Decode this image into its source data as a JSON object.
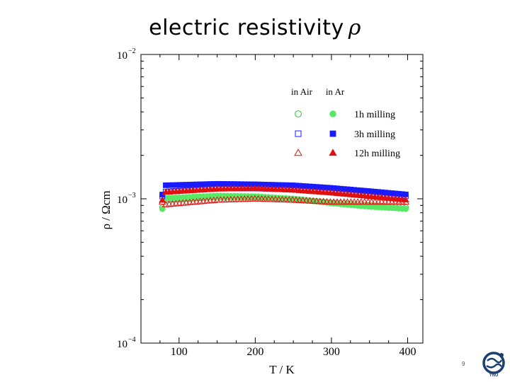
{
  "slide": {
    "title": "electric resistivity",
    "title_symbol": "ρ",
    "page_number": "9",
    "logo_caption": "YNU"
  },
  "chart_data": {
    "type": "scatter",
    "title": "electric resistivity ρ",
    "xlabel": "T / K",
    "ylabel": "ρ / Ωcm",
    "xlim": [
      50,
      420
    ],
    "ylim": [
      0.0001,
      0.01
    ],
    "yscale": "log",
    "x_ticks": [
      100,
      200,
      300,
      400
    ],
    "y_ticks": [
      {
        "value": 0.01,
        "base": "10",
        "exp": "−2"
      },
      {
        "value": 0.001,
        "base": "10",
        "exp": "−3"
      },
      {
        "value": 0.0001,
        "base": "10",
        "exp": "−4"
      }
    ],
    "legend": {
      "placement": "top-right",
      "col_headers": [
        "in Air",
        "in Ar"
      ],
      "rows": [
        {
          "label": "1h milling",
          "color": "#2dbf3a",
          "shape": "circle"
        },
        {
          "label": "3h milling",
          "color": "#1a1aff",
          "shape": "square"
        },
        {
          "label": "12h milling",
          "color": "#e01010",
          "shape": "triangle"
        }
      ]
    },
    "x_range": [
      78,
      400
    ],
    "series": [
      {
        "name": "1h milling in Air",
        "color": "#2dbf3a",
        "shape": "circle",
        "filled": false,
        "points": [
          [
            80,
            0.00098
          ],
          [
            150,
            0.00103
          ],
          [
            200,
            0.00103
          ],
          [
            250,
            0.001
          ],
          [
            300,
            0.00094
          ],
          [
            350,
            0.0009
          ],
          [
            400,
            0.00087
          ]
        ]
      },
      {
        "name": "1h milling in Ar",
        "color": "#59e865",
        "shape": "circle",
        "filled": true,
        "points": [
          [
            80,
            0.00101
          ],
          [
            150,
            0.00105
          ],
          [
            200,
            0.00104
          ],
          [
            250,
            0.001
          ],
          [
            300,
            0.00093
          ],
          [
            350,
            0.00088
          ],
          [
            400,
            0.00085
          ]
        ]
      },
      {
        "name": "3h milling in Air",
        "color": "#1a1aff",
        "shape": "square",
        "filled": false,
        "points": [
          [
            80,
            0.00112
          ],
          [
            150,
            0.00118
          ],
          [
            200,
            0.00118
          ],
          [
            250,
            0.00116
          ],
          [
            300,
            0.00112
          ],
          [
            350,
            0.00108
          ],
          [
            400,
            0.00104
          ]
        ]
      },
      {
        "name": "3h milling in Ar",
        "color": "#1a1aff",
        "shape": "square",
        "filled": true,
        "points": [
          [
            80,
            0.00124
          ],
          [
            150,
            0.00127
          ],
          [
            200,
            0.00126
          ],
          [
            250,
            0.00124
          ],
          [
            300,
            0.00119
          ],
          [
            350,
            0.00113
          ],
          [
            400,
            0.00107
          ]
        ]
      },
      {
        "name": "12h milling in Air",
        "color": "#e01010",
        "shape": "triangle",
        "filled": false,
        "points": [
          [
            80,
            0.00091
          ],
          [
            150,
            0.00098
          ],
          [
            200,
            0.001
          ],
          [
            250,
            0.00098
          ],
          [
            300,
            0.00095
          ],
          [
            350,
            0.00095
          ],
          [
            400,
            0.00095
          ]
        ]
      },
      {
        "name": "12h milling in Ar",
        "color": "#e01010",
        "shape": "triangle",
        "filled": true,
        "points": [
          [
            80,
            0.00111
          ],
          [
            150,
            0.00117
          ],
          [
            200,
            0.00118
          ],
          [
            250,
            0.00115
          ],
          [
            300,
            0.0011
          ],
          [
            350,
            0.00104
          ],
          [
            400,
            0.00098
          ]
        ]
      }
    ]
  }
}
